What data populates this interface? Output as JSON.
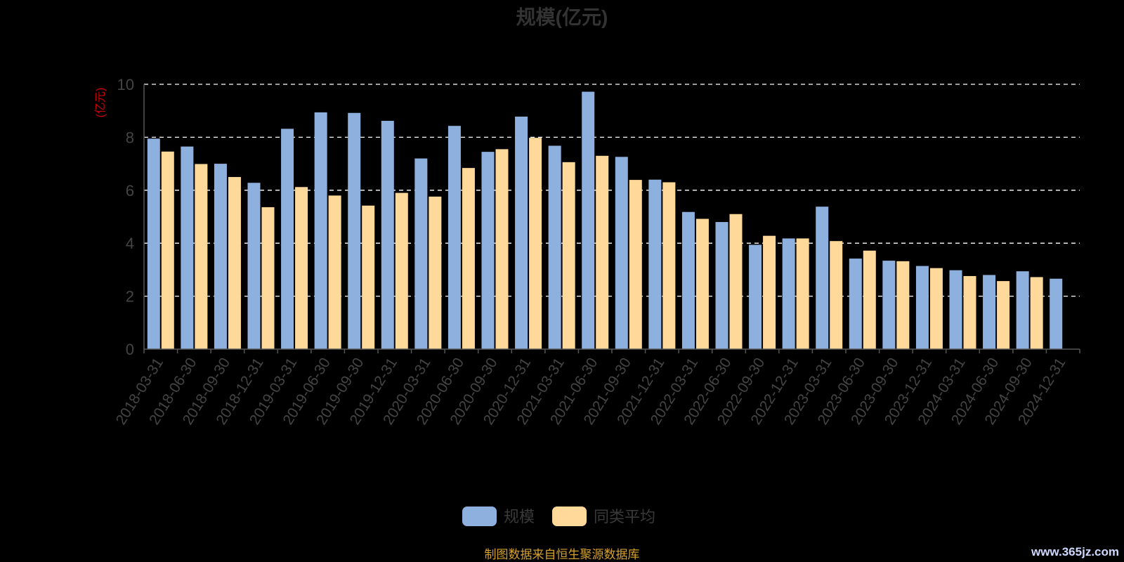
{
  "title": "规模(亿元)",
  "unit_label": "(亿元)",
  "source_note": "制图数据来自恒生聚源数据库",
  "watermark": "www.365jz.com",
  "colors": {
    "scale": "#8eb0de",
    "average": "#ffd99a",
    "grid": "#ffffff",
    "axis": "#555555"
  },
  "chart_data": {
    "type": "bar",
    "title": "规模(亿元)",
    "ylabel": "(亿元)",
    "ylim": [
      0,
      10
    ],
    "yticks": [
      0,
      2,
      4,
      6,
      8,
      10
    ],
    "grid": true,
    "legend_position": "bottom-center",
    "categories": [
      "2018-03-31",
      "2018-06-30",
      "2018-09-30",
      "2018-12-31",
      "2019-03-31",
      "2019-06-30",
      "2019-09-30",
      "2019-12-31",
      "2020-03-31",
      "2020-06-30",
      "2020-09-30",
      "2020-12-31",
      "2021-03-31",
      "2021-06-30",
      "2021-09-30",
      "2021-12-31",
      "2022-03-31",
      "2022-06-30",
      "2022-09-30",
      "2022-12-31",
      "2023-03-31",
      "2023-06-30",
      "2023-09-30",
      "2023-12-31",
      "2024-03-31",
      "2024-06-30",
      "2024-09-30",
      "2024-12-31"
    ],
    "series": [
      {
        "name": "规模",
        "color": "#8eb0de",
        "values": [
          7.95,
          7.65,
          7.0,
          6.28,
          8.32,
          8.94,
          8.92,
          8.62,
          7.2,
          8.43,
          7.45,
          8.78,
          7.68,
          9.72,
          7.26,
          6.4,
          5.18,
          4.8,
          3.94,
          4.18,
          5.38,
          3.42,
          3.34,
          3.14,
          2.98,
          2.8,
          2.94,
          2.66
        ]
      },
      {
        "name": "同类平均",
        "color": "#ffd99a",
        "values": [
          7.46,
          6.99,
          6.5,
          5.36,
          6.12,
          5.8,
          5.42,
          5.9,
          5.76,
          6.84,
          7.55,
          7.98,
          7.06,
          7.3,
          6.39,
          6.3,
          4.92,
          5.1,
          4.28,
          4.18,
          4.08,
          3.72,
          3.32,
          3.06,
          2.76,
          2.57,
          2.72,
          null
        ]
      }
    ]
  }
}
